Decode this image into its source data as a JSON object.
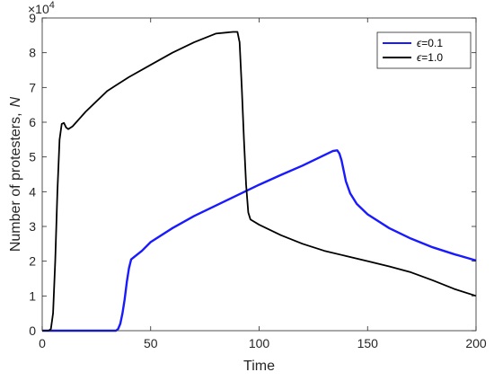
{
  "chart_data": {
    "type": "line",
    "xlabel": "Time",
    "ylabel": "Number of protesters,",
    "ylabel_symbol": "N",
    "y_multiplier_base": "×10",
    "y_multiplier_exp": "4",
    "xlim": [
      0,
      200
    ],
    "ylim": [
      0,
      90000
    ],
    "x_ticks": [
      0,
      50,
      100,
      150,
      200
    ],
    "x_tick_labels": [
      "0",
      "50",
      "100",
      "150",
      "200"
    ],
    "y_ticks": [
      0,
      10000,
      20000,
      30000,
      40000,
      50000,
      60000,
      70000,
      80000,
      90000
    ],
    "y_tick_labels": [
      "0",
      "1",
      "2",
      "3",
      "4",
      "5",
      "6",
      "7",
      "8",
      "9"
    ],
    "grid": false,
    "legend_position": "top-right",
    "series": [
      {
        "name": "ϵ=0.1",
        "legend_symbol": "ϵ",
        "legend_value": "=0.1",
        "color": "#1a1aff",
        "points": [
          [
            0,
            0
          ],
          [
            34,
            0
          ],
          [
            35,
            500
          ],
          [
            36,
            2000
          ],
          [
            37,
            5000
          ],
          [
            38,
            9000
          ],
          [
            39,
            14000
          ],
          [
            40,
            18000
          ],
          [
            41,
            20500
          ],
          [
            43,
            21500
          ],
          [
            46,
            23000
          ],
          [
            50,
            25500
          ],
          [
            60,
            29500
          ],
          [
            70,
            33000
          ],
          [
            80,
            36000
          ],
          [
            90,
            39000
          ],
          [
            100,
            42000
          ],
          [
            110,
            44800
          ],
          [
            120,
            47500
          ],
          [
            130,
            50500
          ],
          [
            134,
            51700
          ],
          [
            136,
            51900
          ],
          [
            137,
            51000
          ],
          [
            138,
            49000
          ],
          [
            139,
            46000
          ],
          [
            140,
            43000
          ],
          [
            142,
            39500
          ],
          [
            145,
            36500
          ],
          [
            150,
            33500
          ],
          [
            160,
            29500
          ],
          [
            170,
            26500
          ],
          [
            180,
            24000
          ],
          [
            190,
            22000
          ],
          [
            200,
            20200
          ]
        ]
      },
      {
        "name": "ϵ=1.0",
        "legend_symbol": "ϵ",
        "legend_value": "=1.0",
        "color": "#000000",
        "points": [
          [
            0,
            0
          ],
          [
            3,
            0
          ],
          [
            4,
            500
          ],
          [
            5,
            5000
          ],
          [
            6,
            20000
          ],
          [
            7,
            40000
          ],
          [
            8,
            55000
          ],
          [
            9,
            59500
          ],
          [
            10,
            59800
          ],
          [
            11,
            58500
          ],
          [
            12,
            58000
          ],
          [
            14,
            58800
          ],
          [
            20,
            63000
          ],
          [
            30,
            69000
          ],
          [
            40,
            73000
          ],
          [
            50,
            76500
          ],
          [
            60,
            80000
          ],
          [
            70,
            83000
          ],
          [
            80,
            85500
          ],
          [
            88,
            86000
          ],
          [
            90,
            86000
          ],
          [
            91,
            83000
          ],
          [
            92,
            70000
          ],
          [
            93,
            55000
          ],
          [
            94,
            42000
          ],
          [
            95,
            34000
          ],
          [
            96,
            32000
          ],
          [
            100,
            30500
          ],
          [
            110,
            27500
          ],
          [
            120,
            25000
          ],
          [
            130,
            23000
          ],
          [
            140,
            21500
          ],
          [
            150,
            20000
          ],
          [
            160,
            18500
          ],
          [
            170,
            16800
          ],
          [
            180,
            14500
          ],
          [
            190,
            12000
          ],
          [
            200,
            10000
          ]
        ]
      }
    ]
  }
}
